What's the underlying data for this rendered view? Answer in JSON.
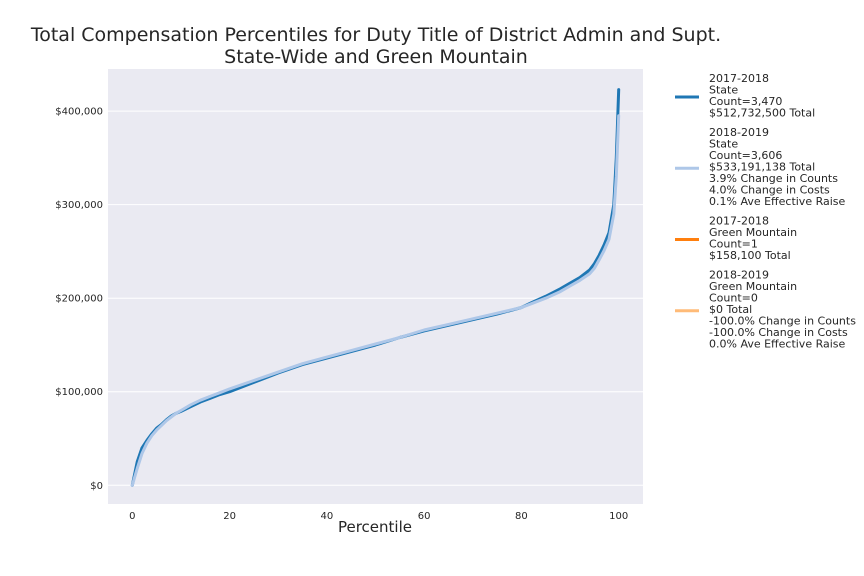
{
  "chart_data": {
    "type": "line",
    "title_lines": [
      "Total Compensation Percentiles for Duty Title of District Admin and Supt.",
      "State-Wide and Green Mountain"
    ],
    "xlabel": "Percentile",
    "ylabel": "",
    "xlim": [
      -5,
      105
    ],
    "ylim": [
      -20000,
      445000
    ],
    "x_ticks": [
      0,
      20,
      40,
      60,
      80,
      100
    ],
    "y_ticks": [
      0,
      100000,
      200000,
      300000,
      400000
    ],
    "y_tick_labels": [
      "$0",
      "$100,000",
      "$200,000",
      "$300,000",
      "$400,000"
    ],
    "grid": true,
    "legend_placement": "outside-right",
    "series": [
      {
        "name": "2017-2018 State",
        "legend_lines": [
          "2017-2018",
          "State",
          "Count=3,470",
          "$512,732,500 Total"
        ],
        "color": "#1f77b4",
        "width": 3,
        "x": [
          0,
          1,
          2,
          3,
          4,
          5,
          6,
          7,
          8,
          9,
          10,
          12,
          14,
          16,
          18,
          20,
          25,
          30,
          35,
          40,
          45,
          50,
          55,
          60,
          65,
          70,
          75,
          80,
          82,
          85,
          88,
          90,
          92,
          94,
          95,
          96,
          97,
          98,
          99,
          99.5,
          100
        ],
        "values": [
          0,
          25000,
          40000,
          48000,
          55000,
          61000,
          65000,
          70000,
          74000,
          77000,
          79000,
          84000,
          89000,
          93000,
          97000,
          100000,
          110000,
          120000,
          129000,
          136000,
          143000,
          150000,
          158000,
          165000,
          171000,
          177000,
          183000,
          190000,
          195000,
          202000,
          210000,
          216000,
          222000,
          230000,
          237000,
          246000,
          257000,
          270000,
          300000,
          350000,
          423000
        ]
      },
      {
        "name": "2018-2019 State",
        "legend_lines": [
          "2018-2019",
          "State",
          "Count=3,606",
          "$533,191,138 Total",
          "3.9% Change in Counts",
          "4.0% Change in Costs",
          "0.1% Ave Effective Raise"
        ],
        "color": "#aec7e8",
        "width": 3,
        "x": [
          0,
          1,
          2,
          3,
          4,
          5,
          6,
          7,
          8,
          9,
          10,
          12,
          14,
          16,
          18,
          20,
          25,
          30,
          35,
          40,
          45,
          50,
          55,
          60,
          65,
          70,
          75,
          80,
          82,
          85,
          88,
          90,
          92,
          94,
          95,
          96,
          97,
          98,
          99,
          99.5,
          100
        ],
        "values": [
          0,
          18000,
          34000,
          45000,
          53000,
          59000,
          64000,
          69000,
          73000,
          77000,
          80000,
          86000,
          91000,
          95000,
          99000,
          103000,
          112000,
          121000,
          130000,
          137000,
          144000,
          151000,
          158000,
          166000,
          172000,
          178000,
          184000,
          190000,
          194000,
          200000,
          207000,
          213000,
          219000,
          226000,
          232000,
          241000,
          251000,
          263000,
          290000,
          330000,
          395000
        ]
      },
      {
        "name": "2017-2018 Green Mountain",
        "legend_lines": [
          "2017-2018",
          "Green Mountain",
          "Count=1",
          "$158,100 Total"
        ],
        "color": "#ff7f0e",
        "width": 3,
        "x": [],
        "values": []
      },
      {
        "name": "2018-2019 Green Mountain",
        "legend_lines": [
          "2018-2019",
          "Green Mountain",
          "Count=0",
          "$0 Total",
          "-100.0% Change in Counts",
          "-100.0% Change in Costs",
          "0.0% Ave Effective Raise"
        ],
        "color": "#ffbb78",
        "width": 3,
        "x": [],
        "values": []
      }
    ]
  }
}
